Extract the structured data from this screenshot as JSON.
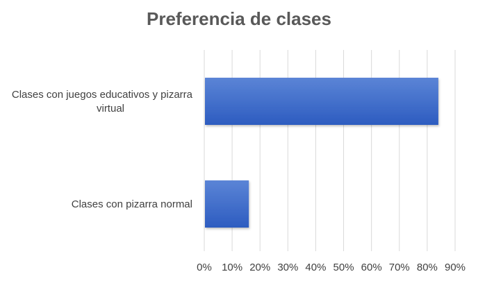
{
  "chart_data": {
    "type": "bar",
    "orientation": "horizontal",
    "title": "Preferencia de clases",
    "categories": [
      [
        "Clases con juegos educativos y pizarra",
        "virtual"
      ],
      [
        "Clases con pizarra normal"
      ]
    ],
    "values": [
      0.84,
      0.16
    ],
    "xlim": [
      0,
      0.9
    ],
    "xticks": [
      "0%",
      "10%",
      "20%",
      "30%",
      "40%",
      "50%",
      "60%",
      "70%",
      "80%",
      "90%"
    ],
    "xtick_values": [
      0,
      0.1,
      0.2,
      0.3,
      0.4,
      0.5,
      0.6,
      0.7,
      0.8,
      0.9
    ],
    "grid": true,
    "colors": {
      "bar_top": "#5b84d6",
      "bar_bottom": "#2d5cc0",
      "grid": "#d9d9d9",
      "text": "#404040",
      "title": "#595959"
    }
  }
}
